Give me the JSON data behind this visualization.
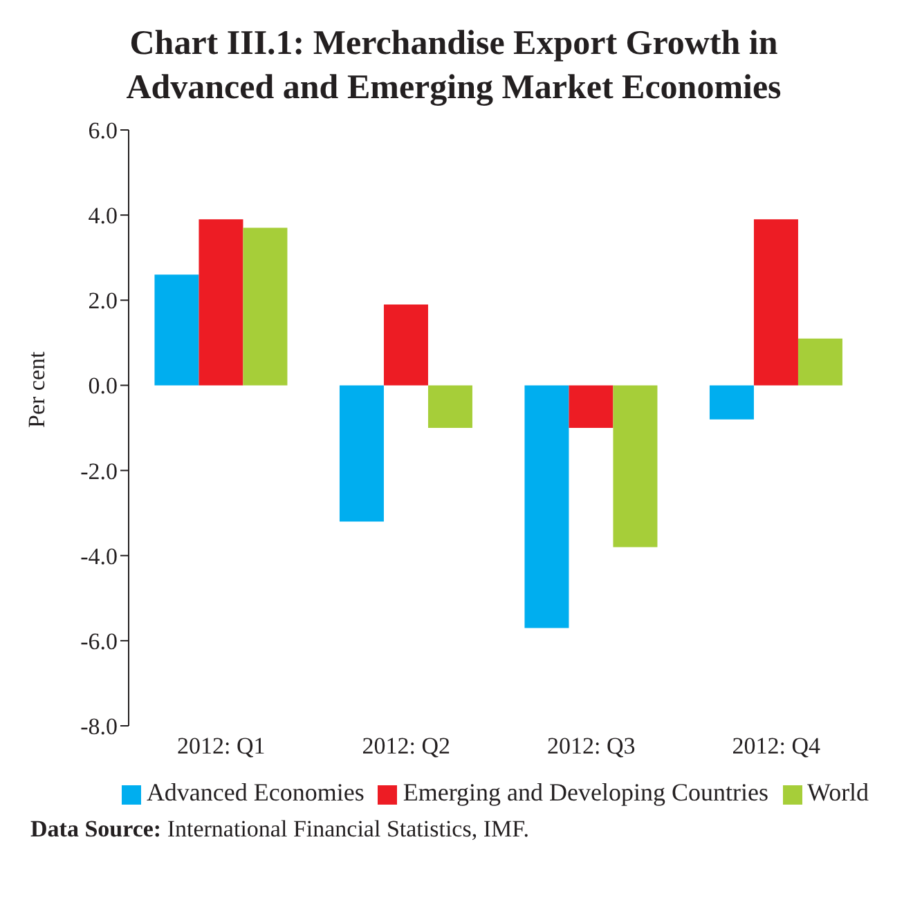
{
  "chart_data": {
    "type": "bar",
    "title": "Chart III.1: Merchandise Export Growth in Advanced and Emerging Market Economies",
    "ylabel": "Per cent",
    "categories": [
      "2012: Q1",
      "2012: Q2",
      "2012: Q3",
      "2012: Q4"
    ],
    "series": [
      {
        "name": "Advanced Economies",
        "color": "#00aeef",
        "values": [
          2.6,
          -3.2,
          -5.7,
          -0.8
        ]
      },
      {
        "name": "Emerging and Developing Countries",
        "color": "#ed1c24",
        "values": [
          3.9,
          1.9,
          -1.0,
          3.9
        ]
      },
      {
        "name": "World",
        "color": "#a6ce39",
        "values": [
          3.7,
          -1.0,
          -3.8,
          1.1
        ]
      }
    ],
    "ylim": [
      -8,
      6
    ],
    "yticks": [
      {
        "value": -8,
        "label": "-8.0"
      },
      {
        "value": -6,
        "label": "-6.0"
      },
      {
        "value": -4,
        "label": "-4.0"
      },
      {
        "value": -2,
        "label": "-2.0"
      },
      {
        "value": 0,
        "label": "0.0"
      },
      {
        "value": 2,
        "label": "2.0"
      },
      {
        "value": 4,
        "label": "4.0"
      },
      {
        "value": 6,
        "label": "6.0"
      }
    ],
    "grid": false,
    "legend": "bottom",
    "annotations": [
      "Data Source: International Financial Statistics, IMF."
    ]
  }
}
